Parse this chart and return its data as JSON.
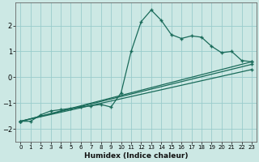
{
  "xlabel": "Humidex (Indice chaleur)",
  "bg_color": "#cce8e4",
  "grid_color": "#99cccc",
  "line_color": "#1a6b5a",
  "xlim": [
    -0.5,
    23.5
  ],
  "ylim": [
    -2.5,
    2.9
  ],
  "xticks": [
    0,
    1,
    2,
    3,
    4,
    5,
    6,
    7,
    8,
    9,
    10,
    11,
    12,
    13,
    14,
    15,
    16,
    17,
    18,
    19,
    20,
    21,
    22,
    23
  ],
  "yticks": [
    -2,
    -1,
    0,
    1,
    2
  ],
  "series1_x": [
    0,
    1,
    2,
    3,
    4,
    5,
    6,
    7,
    8,
    9,
    10,
    11,
    12,
    13,
    14,
    15,
    16,
    17,
    18,
    19,
    20,
    21,
    22,
    23
  ],
  "series1_y": [
    -1.7,
    -1.7,
    -1.45,
    -1.3,
    -1.25,
    -1.2,
    -1.15,
    -1.1,
    -1.05,
    -1.15,
    -0.6,
    1.0,
    2.15,
    2.6,
    2.2,
    1.65,
    1.5,
    1.6,
    1.55,
    1.2,
    0.95,
    1.0,
    0.65,
    0.6
  ],
  "series2_x": [
    0,
    23
  ],
  "series2_y": [
    -1.7,
    0.6
  ],
  "series3_x": [
    0,
    23
  ],
  "series3_y": [
    -1.7,
    0.3
  ],
  "series4_x": [
    0,
    23
  ],
  "series4_y": [
    -1.7,
    0.5
  ]
}
